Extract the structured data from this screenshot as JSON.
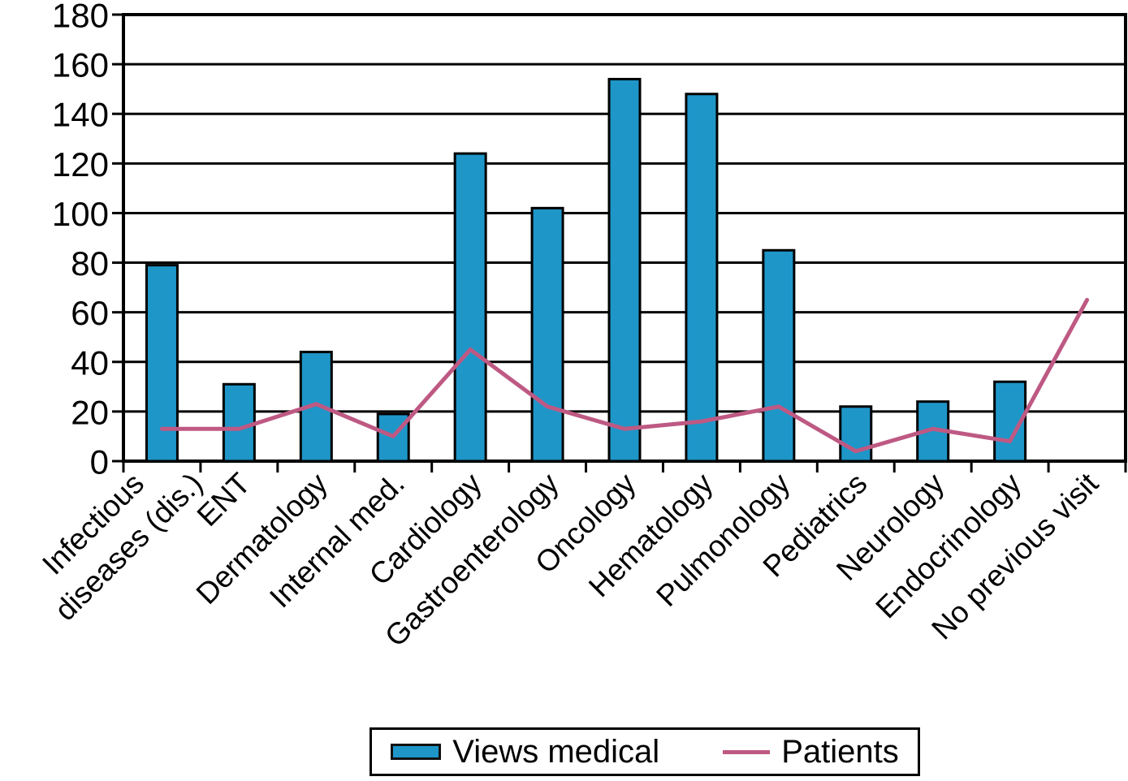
{
  "chart_data": {
    "type": "bar+line",
    "categories": [
      "Infectious\ndiseases (dis.)",
      "ENT",
      "Dermatology",
      "Internal med.",
      "Cardiology",
      "Gastroenterology",
      "Oncology",
      "Hematology",
      "Pulmonology",
      "Pediatrics",
      "Neurology",
      "Endocrinology",
      "No previous visit"
    ],
    "series": [
      {
        "name": "Views medical",
        "type": "bar",
        "color": "#1E96C8",
        "values": [
          79,
          31,
          44,
          19,
          124,
          102,
          154,
          148,
          85,
          22,
          24,
          32,
          null
        ]
      },
      {
        "name": "Patients",
        "type": "line",
        "color": "#BE5983",
        "values": [
          13,
          13,
          23,
          10,
          45,
          22,
          13,
          16,
          22,
          4,
          13,
          8,
          65
        ]
      }
    ],
    "y_axis": {
      "min": 0,
      "max": 180,
      "tick_step": 20,
      "tick_labels": [
        "0",
        "20",
        "40",
        "60",
        "80",
        "100",
        "120",
        "140",
        "160",
        "180"
      ]
    },
    "x_axis": {
      "label_rotation_deg": 45
    },
    "grid": "horizontal",
    "legend_position": "bottom-center",
    "colors": {
      "bar_fill": "#1E96C8",
      "bar_border": "#000000",
      "line": "#BE5983",
      "grid": "#000000",
      "background": "#FFFFFF"
    }
  },
  "legend": {
    "items": [
      {
        "label": "Views medical",
        "swatch": "bar"
      },
      {
        "label": "Patients",
        "swatch": "line"
      }
    ]
  }
}
